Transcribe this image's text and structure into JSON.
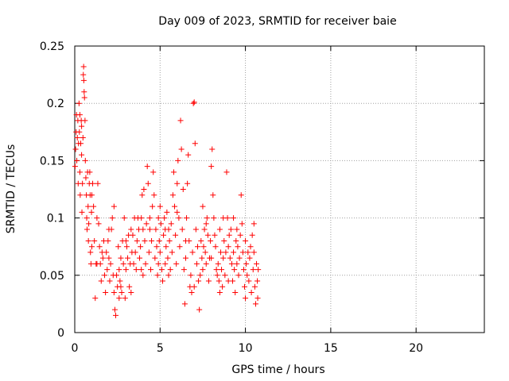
{
  "chart_data": {
    "type": "scatter",
    "title": "Day 009 of 2023, SRMTID for receiver baie",
    "xlabel": "GPS time / hours",
    "ylabel": "SRMTID / TECUs",
    "xlim": [
      0,
      24
    ],
    "ylim": [
      0,
      0.25
    ],
    "xticks": [
      0,
      5,
      10,
      15,
      20
    ],
    "yticks": [
      0,
      0.05,
      0.1,
      0.15,
      0.2,
      0.25
    ],
    "xtick_labels": [
      "0",
      "5",
      "10",
      "15",
      "20"
    ],
    "ytick_labels": [
      "0",
      "0.05",
      "0.1",
      "0.15",
      "0.2",
      "0.25"
    ],
    "grid": true,
    "marker": "+",
    "color": "#ff0000",
    "series": [
      {
        "name": "SRMTID",
        "points": [
          [
            0.02,
            0.145
          ],
          [
            0.05,
            0.16
          ],
          [
            0.08,
            0.175
          ],
          [
            0.1,
            0.19
          ],
          [
            0.12,
            0.15
          ],
          [
            0.15,
            0.17
          ],
          [
            0.18,
            0.185
          ],
          [
            0.2,
            0.13
          ],
          [
            0.22,
            0.165
          ],
          [
            0.25,
            0.2
          ],
          [
            0.27,
            0.175
          ],
          [
            0.3,
            0.14
          ],
          [
            0.32,
            0.12
          ],
          [
            0.35,
            0.165
          ],
          [
            0.38,
            0.185
          ],
          [
            0.4,
            0.155
          ],
          [
            0.42,
            0.105
          ],
          [
            0.45,
            0.13
          ],
          [
            0.48,
            0.17
          ],
          [
            0.5,
            0.225
          ],
          [
            0.52,
            0.232
          ],
          [
            0.53,
            0.22
          ],
          [
            0.55,
            0.21
          ],
          [
            0.57,
            0.205
          ],
          [
            0.6,
            0.185
          ],
          [
            0.62,
            0.15
          ],
          [
            0.65,
            0.135
          ],
          [
            0.68,
            0.12
          ],
          [
            0.7,
            0.1
          ],
          [
            0.72,
            0.09
          ],
          [
            0.75,
            0.14
          ],
          [
            0.78,
            0.11
          ],
          [
            0.8,
            0.08
          ],
          [
            0.82,
            0.095
          ],
          [
            0.85,
            0.13
          ],
          [
            0.88,
            0.14
          ],
          [
            0.9,
            0.12
          ],
          [
            0.92,
            0.07
          ],
          [
            0.95,
            0.06
          ],
          [
            0.98,
            0.105
          ],
          [
            1.0,
            0.12
          ],
          [
            1.05,
            0.13
          ],
          [
            1.1,
            0.11
          ],
          [
            1.15,
            0.08
          ],
          [
            1.2,
            0.03
          ],
          [
            1.25,
            0.06
          ],
          [
            1.3,
            0.1
          ],
          [
            1.35,
            0.13
          ],
          [
            1.4,
            0.095
          ],
          [
            1.45,
            0.075
          ],
          [
            1.5,
            0.06
          ],
          [
            1.55,
            0.045
          ],
          [
            1.6,
            0.07
          ],
          [
            1.65,
            0.065
          ],
          [
            1.7,
            0.08
          ],
          [
            1.75,
            0.05
          ],
          [
            1.8,
            0.035
          ],
          [
            1.85,
            0.07
          ],
          [
            1.9,
            0.055
          ],
          [
            1.95,
            0.08
          ],
          [
            2.0,
            0.065
          ],
          [
            2.05,
            0.045
          ],
          [
            2.1,
            0.06
          ],
          [
            2.15,
            0.09
          ],
          [
            2.2,
            0.1
          ],
          [
            2.25,
            0.05
          ],
          [
            2.3,
            0.035
          ],
          [
            2.35,
            0.02
          ],
          [
            2.4,
            0.015
          ],
          [
            2.45,
            0.05
          ],
          [
            2.5,
            0.04
          ],
          [
            2.55,
            0.075
          ],
          [
            2.6,
            0.055
          ],
          [
            2.65,
            0.045
          ],
          [
            2.7,
            0.065
          ],
          [
            2.75,
            0.035
          ],
          [
            2.8,
            0.08
          ],
          [
            2.85,
            0.06
          ],
          [
            2.9,
            0.1
          ],
          [
            2.95,
            0.03
          ],
          [
            3.0,
            0.055
          ],
          [
            3.05,
            0.075
          ],
          [
            3.1,
            0.065
          ],
          [
            3.15,
            0.085
          ],
          [
            3.2,
            0.04
          ],
          [
            3.25,
            0.06
          ],
          [
            3.3,
            0.09
          ],
          [
            3.35,
            0.07
          ],
          [
            3.4,
            0.085
          ],
          [
            3.45,
            0.06
          ],
          [
            3.5,
            0.1
          ],
          [
            3.55,
            0.07
          ],
          [
            3.6,
            0.055
          ],
          [
            3.65,
            0.08
          ],
          [
            3.7,
            0.1
          ],
          [
            3.75,
            0.09
          ],
          [
            3.8,
            0.065
          ],
          [
            3.85,
            0.075
          ],
          [
            3.9,
            0.1
          ],
          [
            3.95,
            0.12
          ],
          [
            4.0,
            0.09
          ],
          [
            4.05,
            0.125
          ],
          [
            4.1,
            0.08
          ],
          [
            4.15,
            0.06
          ],
          [
            4.2,
            0.095
          ],
          [
            4.25,
            0.145
          ],
          [
            4.3,
            0.13
          ],
          [
            4.35,
            0.07
          ],
          [
            4.4,
            0.1
          ],
          [
            4.45,
            0.055
          ],
          [
            4.5,
            0.08
          ],
          [
            4.55,
            0.11
          ],
          [
            4.6,
            0.14
          ],
          [
            4.65,
            0.12
          ],
          [
            4.7,
            0.065
          ],
          [
            4.75,
            0.09
          ],
          [
            4.8,
            0.075
          ],
          [
            4.85,
            0.05
          ],
          [
            4.9,
            0.06
          ],
          [
            4.95,
            0.08
          ],
          [
            5.0,
            0.07
          ],
          [
            5.05,
            0.095
          ],
          [
            5.1,
            0.055
          ],
          [
            5.15,
            0.045
          ],
          [
            5.2,
            0.085
          ],
          [
            5.25,
            0.1
          ],
          [
            5.3,
            0.06
          ],
          [
            5.35,
            0.075
          ],
          [
            5.4,
            0.105
          ],
          [
            5.45,
            0.065
          ],
          [
            5.5,
            0.09
          ],
          [
            5.55,
            0.08
          ],
          [
            5.6,
            0.055
          ],
          [
            5.65,
            0.095
          ],
          [
            5.7,
            0.07
          ],
          [
            5.75,
            0.12
          ],
          [
            5.8,
            0.14
          ],
          [
            5.85,
            0.11
          ],
          [
            5.9,
            0.085
          ],
          [
            5.95,
            0.06
          ],
          [
            6.0,
            0.13
          ],
          [
            6.05,
            0.15
          ],
          [
            6.1,
            0.1
          ],
          [
            6.15,
            0.075
          ],
          [
            6.2,
            0.185
          ],
          [
            6.25,
            0.16
          ],
          [
            6.3,
            0.09
          ],
          [
            6.35,
            0.125
          ],
          [
            6.4,
            0.055
          ],
          [
            6.45,
            0.025
          ],
          [
            6.5,
            0.065
          ],
          [
            6.55,
            0.1
          ],
          [
            6.6,
            0.13
          ],
          [
            6.65,
            0.155
          ],
          [
            6.7,
            0.08
          ],
          [
            6.75,
            0.04
          ],
          [
            6.8,
            0.05
          ],
          [
            6.85,
            0.035
          ],
          [
            6.9,
            0.07
          ],
          [
            6.95,
            0.2
          ],
          [
            7.0,
            0.201
          ],
          [
            7.05,
            0.165
          ],
          [
            7.1,
            0.09
          ],
          [
            7.15,
            0.06
          ],
          [
            7.2,
            0.075
          ],
          [
            7.25,
            0.045
          ],
          [
            7.3,
            0.02
          ],
          [
            7.35,
            0.05
          ],
          [
            7.4,
            0.08
          ],
          [
            7.45,
            0.065
          ],
          [
            7.5,
            0.055
          ],
          [
            7.55,
            0.075
          ],
          [
            7.6,
            0.09
          ],
          [
            7.65,
            0.07
          ],
          [
            7.7,
            0.06
          ],
          [
            7.75,
            0.1
          ],
          [
            7.8,
            0.085
          ],
          [
            7.85,
            0.045
          ],
          [
            7.9,
            0.065
          ],
          [
            7.95,
            0.08
          ],
          [
            8.0,
            0.145
          ],
          [
            8.05,
            0.16
          ],
          [
            8.1,
            0.12
          ],
          [
            8.15,
            0.1
          ],
          [
            8.2,
            0.085
          ],
          [
            8.25,
            0.075
          ],
          [
            8.3,
            0.055
          ],
          [
            8.35,
            0.05
          ],
          [
            8.4,
            0.06
          ],
          [
            8.45,
            0.045
          ],
          [
            8.5,
            0.035
          ],
          [
            8.55,
            0.07
          ],
          [
            8.6,
            0.055
          ],
          [
            8.65,
            0.04
          ],
          [
            8.7,
            0.065
          ],
          [
            8.75,
            0.08
          ],
          [
            8.8,
            0.05
          ],
          [
            8.85,
            0.07
          ],
          [
            8.9,
            0.14
          ],
          [
            8.95,
            0.1
          ],
          [
            9.0,
            0.075
          ],
          [
            9.05,
            0.085
          ],
          [
            9.1,
            0.065
          ],
          [
            9.15,
            0.09
          ],
          [
            9.2,
            0.06
          ],
          [
            9.25,
            0.045
          ],
          [
            9.3,
            0.07
          ],
          [
            9.35,
            0.055
          ],
          [
            9.4,
            0.035
          ],
          [
            9.45,
            0.08
          ],
          [
            9.5,
            0.06
          ],
          [
            9.55,
            0.075
          ],
          [
            9.6,
            0.05
          ],
          [
            9.65,
            0.065
          ],
          [
            9.7,
            0.085
          ],
          [
            9.75,
            0.12
          ],
          [
            9.8,
            0.095
          ],
          [
            9.85,
            0.07
          ],
          [
            9.9,
            0.055
          ],
          [
            9.95,
            0.04
          ],
          [
            10.0,
            0.08
          ],
          [
            10.05,
            0.06
          ],
          [
            10.1,
            0.05
          ],
          [
            10.15,
            0.07
          ],
          [
            10.2,
            0.045
          ],
          [
            10.25,
            0.065
          ],
          [
            10.3,
            0.075
          ],
          [
            10.35,
            0.035
          ],
          [
            10.4,
            0.085
          ],
          [
            10.45,
            0.055
          ],
          [
            10.5,
            0.095
          ],
          [
            10.55,
            0.04
          ],
          [
            10.6,
            0.025
          ],
          [
            10.65,
            0.06
          ],
          [
            10.7,
            0.045
          ],
          [
            10.72,
            0.03
          ],
          [
            10.75,
            0.055
          ],
          [
            0.3,
            0.19
          ],
          [
            0.4,
            0.18
          ],
          [
            1.0,
            0.075
          ],
          [
            1.3,
            0.06
          ],
          [
            2.0,
            0.09
          ],
          [
            2.3,
            0.11
          ],
          [
            3.0,
            0.08
          ],
          [
            3.3,
            0.035
          ],
          [
            4.0,
            0.05
          ],
          [
            4.4,
            0.09
          ],
          [
            5.0,
            0.11
          ],
          [
            5.5,
            0.05
          ],
          [
            6.0,
            0.105
          ],
          [
            6.5,
            0.08
          ],
          [
            7.0,
            0.04
          ],
          [
            7.5,
            0.11
          ],
          [
            8.0,
            0.065
          ],
          [
            8.5,
            0.09
          ],
          [
            9.0,
            0.045
          ],
          [
            9.5,
            0.09
          ],
          [
            10.0,
            0.03
          ],
          [
            10.5,
            0.07
          ],
          [
            2.6,
            0.03
          ],
          [
            2.7,
            0.04
          ],
          [
            3.9,
            0.055
          ],
          [
            4.9,
            0.1
          ],
          [
            5.3,
            0.09
          ],
          [
            7.7,
            0.095
          ],
          [
            8.7,
            0.1
          ],
          [
            9.3,
            0.1
          ]
        ]
      }
    ]
  }
}
